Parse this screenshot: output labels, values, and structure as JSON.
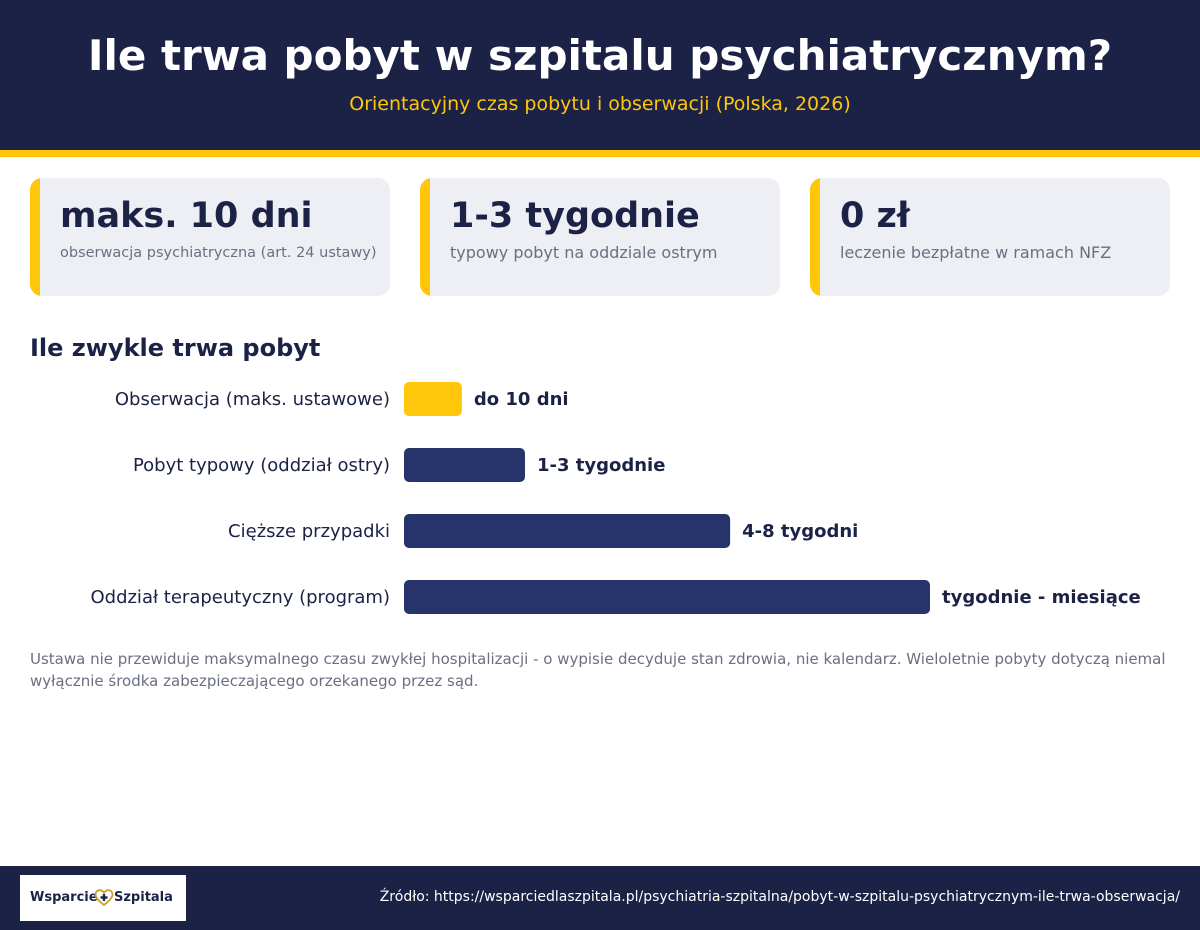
{
  "header": {
    "title": "Ile trwa pobyt w szpitalu psychiatrycznym?",
    "subtitle": "Orientacyjny czas pobytu i obserwacji (Polska, 2026)"
  },
  "cards": [
    {
      "value": "maks. 10 dni",
      "label": "obserwacja psychiatryczna (art. 24 ustawy)"
    },
    {
      "value": "1-3 tygodnie",
      "label": "typowy pobyt na oddziale ostrym"
    },
    {
      "value": "0 zł",
      "label": "leczenie bezpłatne w ramach NFZ"
    }
  ],
  "section_title": "Ile zwykle trwa pobyt",
  "chart_data": {
    "type": "bar",
    "orientation": "horizontal",
    "categories": [
      "Obserwacja (maks. ustawowe)",
      "Pobyt typowy (oddział ostry)",
      "Cięższe przypadki",
      "Oddział terapeutyczny (program)"
    ],
    "values": [
      1.1,
      2.3,
      6.2,
      10
    ],
    "value_labels": [
      "do 10 dni",
      "1-3 tygodnie",
      "4-8 tygodni",
      "tygodnie - miesiące"
    ],
    "bar_colors": [
      "#ffc60a",
      "#27336b",
      "#27336b",
      "#27336b"
    ],
    "xlim": [
      0,
      10
    ],
    "grid": false,
    "axes_visible": false
  },
  "note": "Ustawa nie przewiduje maksymalnego czasu zwykłej hospitalizacji - o wypisie decyduje stan zdrowia, nie kalendarz. Wieloletnie pobyty dotyczą niemal wyłącznie środka zabezpieczającego orzekanego przez sąd.",
  "footer": {
    "logo_left": "Wsparcie",
    "logo_right": "Szpitala",
    "logo_icon": "heart-plus-icon",
    "source": "Źródło: https://wsparciedlaszpitala.pl/psychiatria-szpitalna/pobyt-w-szpitalu-psychiatrycznym-ile-trwa-obserwacja/"
  },
  "colors": {
    "navy": "#1b2246",
    "bar_navy": "#27336b",
    "accent": "#ffc60a",
    "card_bg": "#eeeff4",
    "muted": "#6b6f82"
  }
}
